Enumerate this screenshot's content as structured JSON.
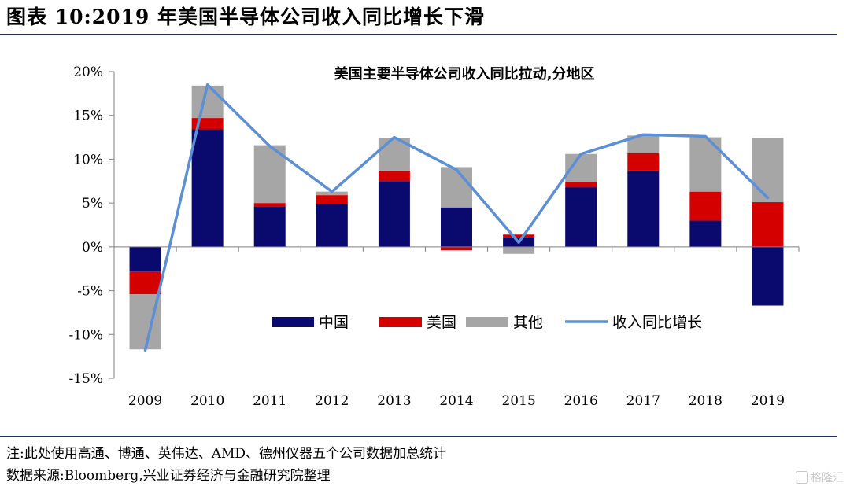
{
  "figure": {
    "title": "图表 10:2019 年美国半导体公司收入同比增长下滑",
    "note": "注:此处使用高通、博通、英伟达、AMD、德州仪器五个公司数据加总统计",
    "source": "数据来源:Bloomberg,兴业证券经济与金融研究院整理",
    "watermark": "格隆汇"
  },
  "chart_data": {
    "type": "bar",
    "stacked": true,
    "title": "美国主要半导体公司收入同比拉动,分地区",
    "categories": [
      "2009",
      "2010",
      "2011",
      "2012",
      "2013",
      "2014",
      "2015",
      "2016",
      "2017",
      "2018",
      "2019"
    ],
    "series": [
      {
        "name": "中国",
        "type": "bar",
        "color": "#0a0a6e",
        "values": [
          -2.8,
          13.4,
          4.6,
          4.9,
          7.5,
          4.5,
          1.1,
          6.8,
          8.7,
          3.0,
          -6.7
        ]
      },
      {
        "name": "美国",
        "type": "bar",
        "color": "#d40000",
        "values": [
          -2.6,
          1.3,
          0.4,
          1.0,
          1.2,
          -0.4,
          0.3,
          0.6,
          2.0,
          3.3,
          5.1
        ]
      },
      {
        "name": "其他",
        "type": "bar",
        "color": "#a6a6a6",
        "values": [
          -6.3,
          3.7,
          6.6,
          0.4,
          3.7,
          4.6,
          -0.8,
          3.2,
          2.0,
          6.2,
          7.3
        ]
      },
      {
        "name": "收入同比增长",
        "type": "line",
        "color": "#5b8fd6",
        "values": [
          -11.8,
          18.5,
          11.5,
          6.3,
          12.5,
          8.8,
          0.5,
          10.6,
          12.8,
          12.6,
          5.6
        ]
      }
    ],
    "yticks": [
      "20%",
      "15%",
      "10%",
      "5%",
      "0%",
      "-5%",
      "-10%",
      "-15%"
    ],
    "ylim": [
      -15,
      20
    ],
    "grid": false,
    "legend_position": "lower-right inside"
  }
}
